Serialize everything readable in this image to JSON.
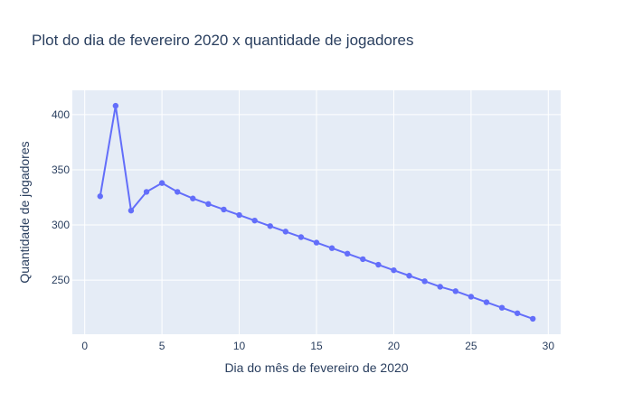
{
  "chart_data": {
    "type": "line",
    "title": "Plot do dia de fevereiro 2020 x quantidade de jogadores",
    "xlabel": "Dia do mês de fevereiro de 2020",
    "ylabel": "Quantidade de jogadores",
    "xlim": [
      -0.8,
      30.8
    ],
    "ylim": [
      201,
      422
    ],
    "xticks": [
      0,
      5,
      10,
      15,
      20,
      25,
      30
    ],
    "yticks": [
      250,
      300,
      350,
      400
    ],
    "grid": true,
    "series": [
      {
        "x": [
          1,
          2,
          3,
          4,
          5,
          6,
          7,
          8,
          9,
          10,
          11,
          12,
          13,
          14,
          15,
          16,
          17,
          18,
          19,
          20,
          21,
          22,
          23,
          24,
          25,
          26,
          27,
          28,
          29
        ],
        "y": [
          326,
          408,
          313,
          330,
          338,
          330,
          324,
          319,
          314,
          309,
          304,
          299,
          294,
          289,
          284,
          279,
          274,
          269,
          264,
          259,
          254,
          249,
          244,
          240,
          235,
          230,
          225,
          220,
          215
        ],
        "color": "#636efa"
      }
    ]
  }
}
